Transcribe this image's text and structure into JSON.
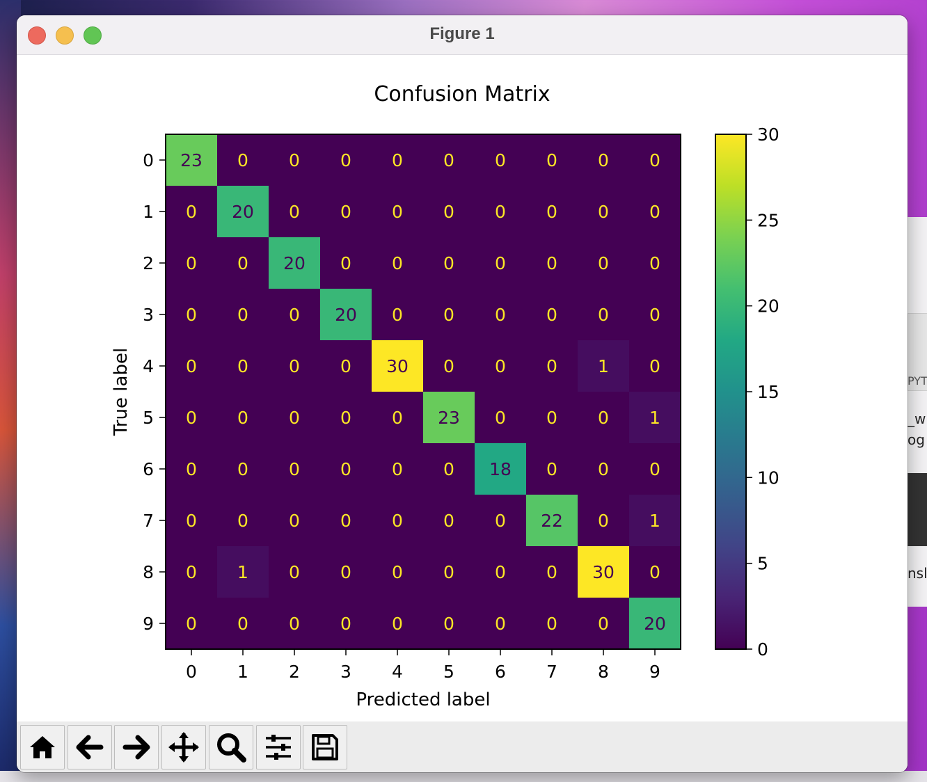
{
  "window": {
    "title": "Figure 1"
  },
  "toolbar": {
    "buttons": [
      {
        "name": "home-button",
        "icon": "home-icon"
      },
      {
        "name": "back-button",
        "icon": "arrow-left-icon"
      },
      {
        "name": "forward-button",
        "icon": "arrow-right-icon"
      },
      {
        "name": "pan-button",
        "icon": "move-icon"
      },
      {
        "name": "zoom-button",
        "icon": "magnifier-icon"
      },
      {
        "name": "configure-subplots-button",
        "icon": "sliders-icon"
      },
      {
        "name": "save-button",
        "icon": "floppy-disk-icon"
      }
    ]
  },
  "background": {
    "right_texts": [
      "PYT",
      "_wr",
      "og",
      "nsl"
    ]
  },
  "chart_data": {
    "type": "heatmap",
    "title": "Confusion Matrix",
    "xlabel": "Predicted label",
    "ylabel": "True label",
    "x_ticks": [
      "0",
      "1",
      "2",
      "3",
      "4",
      "5",
      "6",
      "7",
      "8",
      "9"
    ],
    "y_ticks": [
      "0",
      "1",
      "2",
      "3",
      "4",
      "5",
      "6",
      "7",
      "8",
      "9"
    ],
    "matrix": [
      [
        23,
        0,
        0,
        0,
        0,
        0,
        0,
        0,
        0,
        0
      ],
      [
        0,
        20,
        0,
        0,
        0,
        0,
        0,
        0,
        0,
        0
      ],
      [
        0,
        0,
        20,
        0,
        0,
        0,
        0,
        0,
        0,
        0
      ],
      [
        0,
        0,
        0,
        20,
        0,
        0,
        0,
        0,
        0,
        0
      ],
      [
        0,
        0,
        0,
        0,
        30,
        0,
        0,
        0,
        1,
        0
      ],
      [
        0,
        0,
        0,
        0,
        0,
        23,
        0,
        0,
        0,
        1
      ],
      [
        0,
        0,
        0,
        0,
        0,
        0,
        18,
        0,
        0,
        0
      ],
      [
        0,
        0,
        0,
        0,
        0,
        0,
        0,
        22,
        0,
        1
      ],
      [
        0,
        1,
        0,
        0,
        0,
        0,
        0,
        0,
        30,
        0
      ],
      [
        0,
        0,
        0,
        0,
        0,
        0,
        0,
        0,
        0,
        20
      ]
    ],
    "colormap": "viridis",
    "colorbar": {
      "min": 0,
      "max": 30,
      "ticks": [
        0,
        5,
        10,
        15,
        20,
        25,
        30
      ]
    },
    "grid": false
  }
}
